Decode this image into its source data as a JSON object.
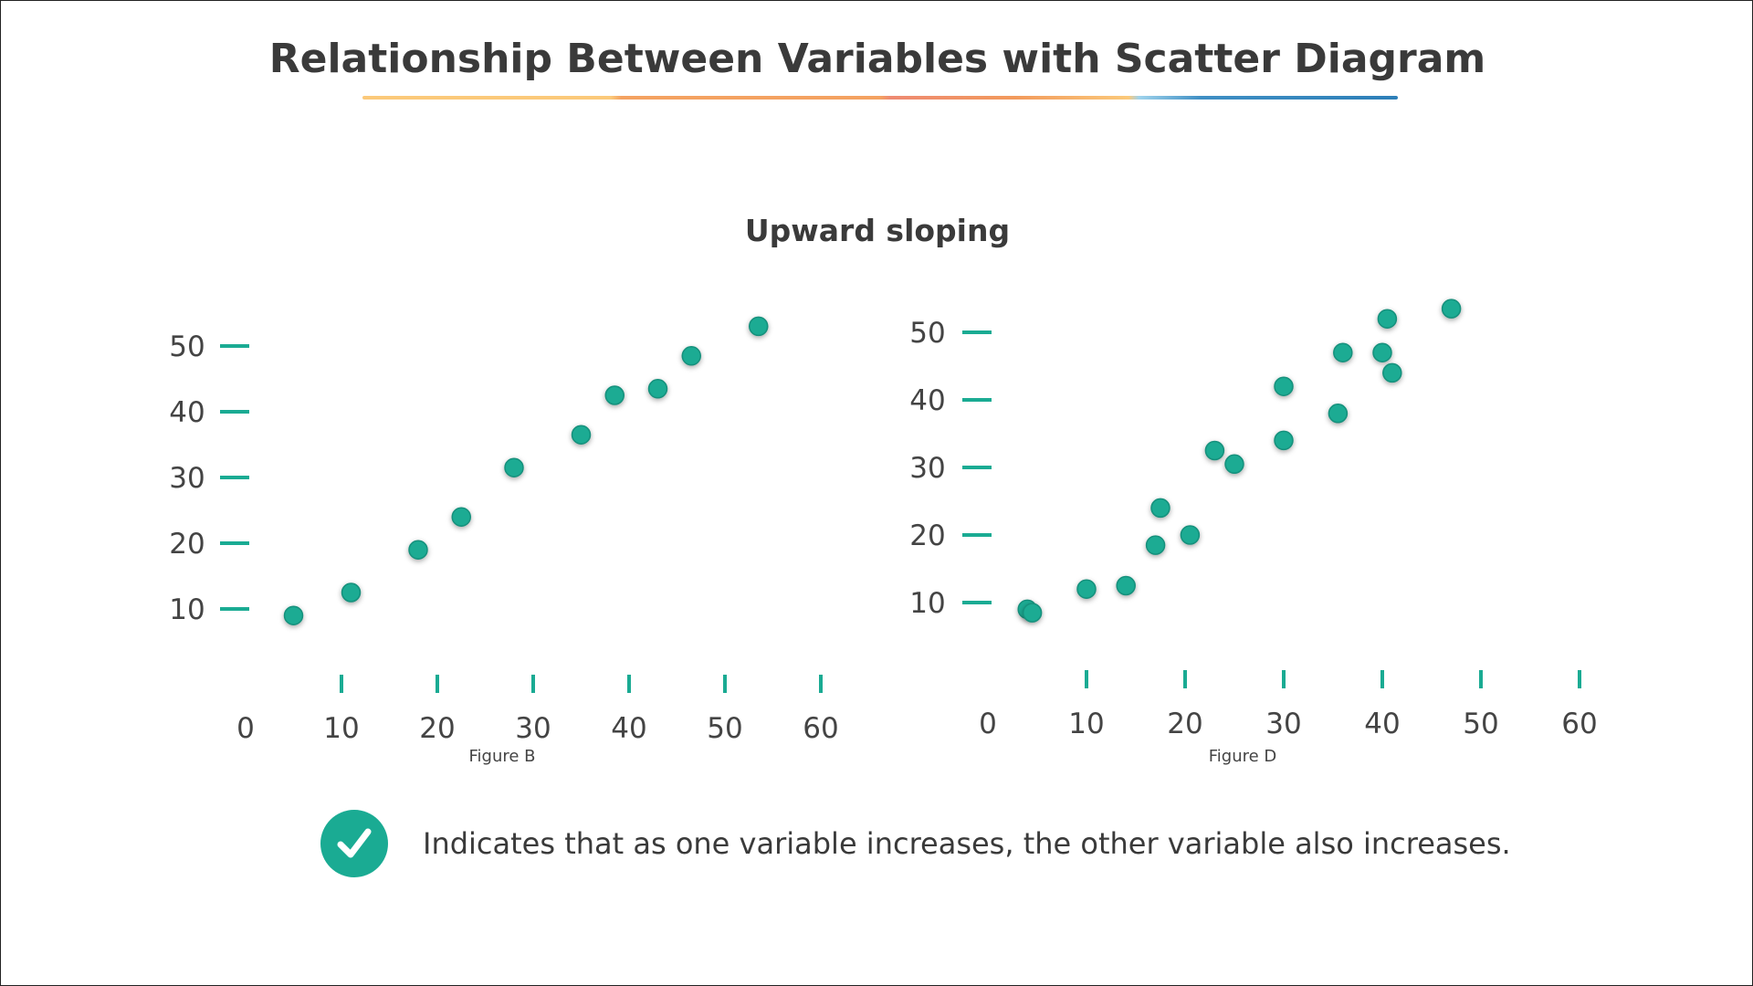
{
  "title": "Relationship Between Variables with Scatter Diagram",
  "subtitle": "Upward sloping",
  "note": "Indicates that as one variable increases, the other variable also increases.",
  "icons": {
    "note_icon": "check-icon"
  },
  "colors": {
    "accent": "#1aab93",
    "axis": "#1aab93",
    "text": "#3a3a3a"
  },
  "chart_data": [
    {
      "type": "scatter",
      "caption": "Figure B",
      "xlim": [
        0,
        60
      ],
      "ylim": [
        0,
        55
      ],
      "x_ticks": [
        0,
        10,
        20,
        30,
        40,
        50,
        60
      ],
      "y_ticks": [
        10,
        20,
        30,
        40,
        50
      ],
      "points": [
        {
          "x": 5,
          "y": 9
        },
        {
          "x": 11,
          "y": 12.5
        },
        {
          "x": 18,
          "y": 19
        },
        {
          "x": 22.5,
          "y": 24
        },
        {
          "x": 28,
          "y": 31.5
        },
        {
          "x": 35,
          "y": 36.5
        },
        {
          "x": 38.5,
          "y": 42.5
        },
        {
          "x": 43,
          "y": 43.5
        },
        {
          "x": 46.5,
          "y": 48.5
        },
        {
          "x": 53.5,
          "y": 53
        }
      ]
    },
    {
      "type": "scatter",
      "caption": "Figure D",
      "xlim": [
        0,
        60
      ],
      "ylim": [
        0,
        55
      ],
      "x_ticks": [
        0,
        10,
        20,
        30,
        40,
        50,
        60
      ],
      "y_ticks": [
        10,
        20,
        30,
        40,
        50
      ],
      "points": [
        {
          "x": 4,
          "y": 9
        },
        {
          "x": 4.5,
          "y": 8.5
        },
        {
          "x": 10,
          "y": 12
        },
        {
          "x": 14,
          "y": 12.5
        },
        {
          "x": 17,
          "y": 18.5
        },
        {
          "x": 17.5,
          "y": 24
        },
        {
          "x": 20.5,
          "y": 20
        },
        {
          "x": 23,
          "y": 32.5
        },
        {
          "x": 25,
          "y": 30.5
        },
        {
          "x": 30,
          "y": 42
        },
        {
          "x": 30,
          "y": 34
        },
        {
          "x": 35.5,
          "y": 38
        },
        {
          "x": 36,
          "y": 47
        },
        {
          "x": 40,
          "y": 47
        },
        {
          "x": 40.5,
          "y": 52
        },
        {
          "x": 41,
          "y": 44
        },
        {
          "x": 47,
          "y": 53.5
        }
      ]
    }
  ]
}
